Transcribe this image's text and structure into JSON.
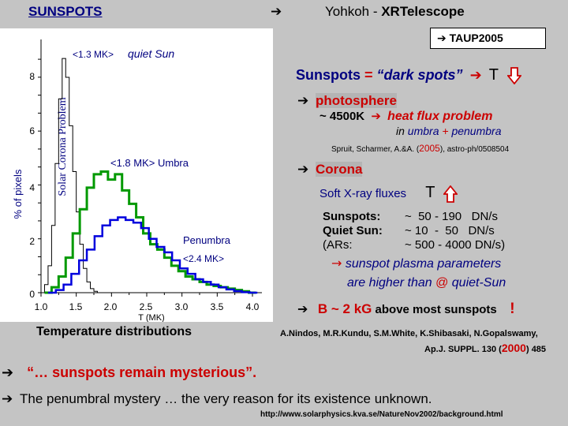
{
  "header": {
    "title": "SUNSPOTS",
    "arrow_main": "➔",
    "instrument_prefix": "Yohkoh  -  ",
    "instrument_name": "XRTelescope"
  },
  "taup": {
    "arrow": "➔",
    "label": "TAUP2005"
  },
  "plot": {
    "ylabel": "% of pixels",
    "side_label": "Solar Corona Problem",
    "xlabel": "T (MK)",
    "x_ticks": [
      "1.0",
      "1.5",
      "2.0",
      "2.5",
      "3.0",
      "3.5",
      "4.0"
    ],
    "y_ticks": [
      "0",
      "2",
      "4",
      "6",
      "8"
    ],
    "annotations": {
      "quiet_sun_value": "<1.3 MK>",
      "quiet_sun_label": "quiet Sun",
      "umbra": "<1.8 MK> Umbra",
      "penumbra_label": "Penumbra",
      "penumbra_value": "<2.4 MK>"
    },
    "caption": "Temperature  distributions",
    "colors": {
      "quiet_sun": "#000000",
      "umbra": "#009900",
      "penumbra": "#0000dd"
    }
  },
  "right": {
    "line1_prefix": "Sunspots",
    "line1_eq": " = ",
    "line1_dark": "“dark spots”",
    "line1_arrow": "➔",
    "line1_T": "T",
    "photosphere_arrow": "➔",
    "photosphere": "photosphere",
    "temp_4500": "~ 4500K",
    "heat_arrow": "➔",
    "heat_flux": "heat flux problem",
    "in_word": "in ",
    "umbra_word": "umbra",
    "plus": " + ",
    "penumbra_word": "penumbra",
    "ref_spruit": "Spruit, Scharmer, A.&A. (",
    "ref_year": "2005",
    "ref_rest": "), astro-ph/0508504",
    "corona_arrow": "➔",
    "corona": "Corona",
    "soft_xray": "Soft X-ray fluxes",
    "soft_T": "T",
    "flux_rows": [
      {
        "label": "Sunspots:",
        "value": "~  50 - 190   DN/s"
      },
      {
        "label": "Quiet Sun:",
        "value": "~ 10  -  50   DN/s"
      },
      {
        "label": "(ARs:",
        "value": "~ 500 - 4000 DN/s)"
      }
    ],
    "plasma_arrow": "→",
    "plasma_line": "sunspot plasma parameters",
    "higher_prefix": "are higher than ",
    "at": "@",
    "quiet_sun": " quiet-Sun",
    "b_arrow": "➔",
    "b_label": "B ~ 2 kG",
    "b_rest": " above most sunspots",
    "exclam": "!",
    "ref_nindos_1": "A.Nindos, M.R.Kundu, S.M.White, K.Shibasaki, N.Gopalswamy,",
    "ref_nindos_2a": "Ap.J. SUPPL.  130  (",
    "ref_nindos_year": "2000",
    "ref_nindos_2b": ")  485"
  },
  "footer": {
    "arrow1": "➔",
    "quote": "“… sunspots remain mysterious”.",
    "arrow2": "➔",
    "mystery": "The penumbral mystery  …  the very reason for its existence unknown.",
    "url": "http://www.solarphysics.kva.se/NatureNov2002/background.html"
  }
}
